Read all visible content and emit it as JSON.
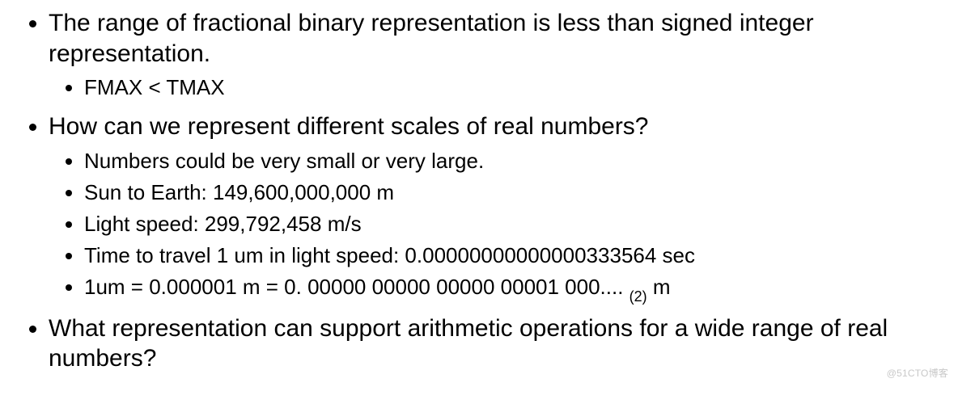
{
  "bullets": [
    {
      "text": "The range of fractional binary representation is less than signed integer representation.",
      "sub": [
        "FMAX < TMAX"
      ]
    },
    {
      "text": "How can we represent different scales of real numbers?",
      "sub": [
        "Numbers could be very small or very large.",
        "Sun to Earth: 149,600,000,000 m",
        "Light speed: 299,792,458 m/s",
        "Time to travel 1 um in light speed: 0.00000000000000333564 sec"
      ],
      "special_last": {
        "pre": "1um = 0.000001 m = 0. 00000 00000 00000 00001 000.... ",
        "sub": "(2)",
        "post": " m"
      }
    },
    {
      "text": "What representation can support arithmetic operations for a wide range of real numbers?",
      "sub": []
    }
  ],
  "watermark": "@51CTO博客",
  "colors": {
    "background": "#ffffff",
    "text": "#000000",
    "watermark": "#c8c8c8"
  },
  "fonts": {
    "outer_pt": 30,
    "inner_pt": 26,
    "subscript_pt": 18,
    "family": "Arial"
  }
}
